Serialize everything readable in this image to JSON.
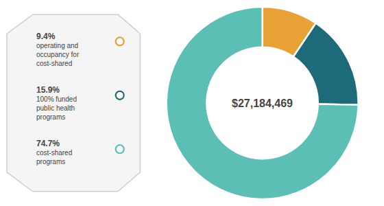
{
  "chart_data": {
    "type": "pie",
    "categories": [
      "operating and\noccupancy for\ncost-shared",
      "100% funded\npublic health\nprograms",
      "cost-shared\nprograms"
    ],
    "values": [
      9.4,
      15.9,
      74.7
    ],
    "value_labels": [
      "9.4%",
      "15.9%",
      "74.7%"
    ],
    "colors": [
      "#e8a135",
      "#1d6b7a",
      "#5bbfb5"
    ],
    "annotations": [
      "$27,184,469"
    ],
    "data_labels": true
  }
}
